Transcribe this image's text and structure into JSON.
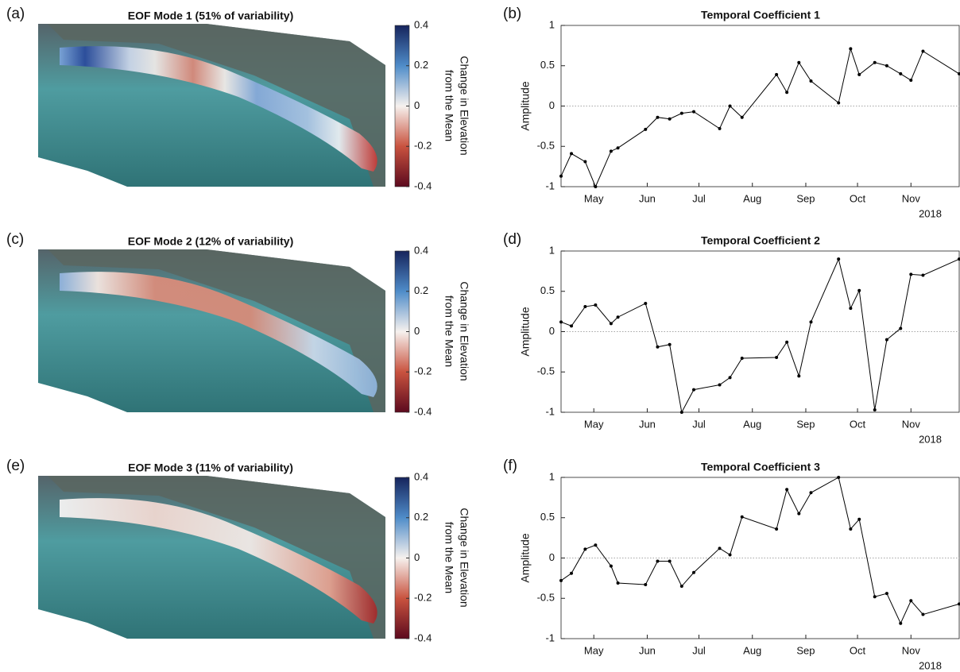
{
  "chart_data": [
    {
      "type": "map",
      "panel": "(a)",
      "title": "EOF Mode 1 (51% of variability)",
      "colorbar_label": [
        "Change in Elevation",
        "from the Mean"
      ],
      "clim": [
        -0.4,
        0.4
      ],
      "cticks": [
        0.4,
        0.2,
        0,
        -0.2,
        -0.4
      ],
      "colormap": [
        "#5c0a1e",
        "#c9533f",
        "#f6f1ee",
        "#4f8cc9",
        "#16245c"
      ]
    },
    {
      "type": "line",
      "panel": "(b)",
      "title": "Temporal Coefficient 1",
      "ylabel": "Amplitude",
      "color": "#000000",
      "x": [
        102,
        108,
        116,
        122,
        131,
        135,
        151,
        158,
        165,
        172,
        179,
        194,
        200,
        207,
        227,
        233,
        240,
        247,
        263,
        270,
        275,
        284,
        291,
        299,
        305,
        312,
        333
      ],
      "values": [
        -0.87,
        -0.59,
        -0.69,
        -1,
        -0.56,
        -0.52,
        -0.29,
        -0.14,
        -0.16,
        -0.09,
        -0.07,
        -0.28,
        0,
        -0.14,
        0.39,
        0.17,
        0.54,
        0.31,
        0.04,
        0.71,
        0.39,
        0.54,
        0.5,
        0.4,
        0.32,
        0.68,
        0.4
      ],
      "xlim": [
        102,
        333
      ],
      "xticks": [
        {
          "value": 121,
          "label": "May"
        },
        {
          "value": 152,
          "label": "Jun"
        },
        {
          "value": 182,
          "label": "Jul"
        },
        {
          "value": 213,
          "label": "Aug"
        },
        {
          "value": 244,
          "label": "Sep"
        },
        {
          "value": 274,
          "label": "Oct"
        },
        {
          "value": 305,
          "label": "Nov"
        }
      ],
      "year_label": "2018",
      "ylim": [
        -1,
        1
      ],
      "yticks": [
        1,
        0.5,
        0,
        -0.5,
        -1
      ],
      "hline": 0
    },
    {
      "type": "map",
      "panel": "(c)",
      "title": "EOF Mode 2 (12% of variability)",
      "colorbar_label": [
        "Change in Elevation",
        "from the Mean"
      ],
      "clim": [
        -0.4,
        0.4
      ],
      "cticks": [
        0.4,
        0.2,
        0,
        -0.2,
        -0.4
      ],
      "colormap": [
        "#5c0a1e",
        "#c9533f",
        "#f6f1ee",
        "#4f8cc9",
        "#16245c"
      ]
    },
    {
      "type": "line",
      "panel": "(d)",
      "title": "Temporal Coefficient 2",
      "ylabel": "Amplitude",
      "color": "#000000",
      "x": [
        102,
        108,
        116,
        122,
        131,
        135,
        151,
        158,
        165,
        172,
        179,
        194,
        200,
        207,
        227,
        233,
        240,
        247,
        263,
        270,
        275,
        284,
        291,
        299,
        305,
        312,
        333
      ],
      "values": [
        0.12,
        0.07,
        0.31,
        0.33,
        0.1,
        0.18,
        0.35,
        -0.19,
        -0.16,
        -1,
        -0.72,
        -0.66,
        -0.57,
        -0.33,
        -0.32,
        -0.13,
        -0.55,
        0.12,
        0.9,
        0.29,
        0.51,
        -0.97,
        -0.1,
        0.04,
        0.71,
        0.7,
        0.9
      ],
      "xlim": [
        102,
        333
      ],
      "xticks": [
        {
          "value": 121,
          "label": "May"
        },
        {
          "value": 152,
          "label": "Jun"
        },
        {
          "value": 182,
          "label": "Jul"
        },
        {
          "value": 213,
          "label": "Aug"
        },
        {
          "value": 244,
          "label": "Sep"
        },
        {
          "value": 274,
          "label": "Oct"
        },
        {
          "value": 305,
          "label": "Nov"
        }
      ],
      "year_label": "2018",
      "ylim": [
        -1,
        1
      ],
      "yticks": [
        1,
        0.5,
        0,
        -0.5,
        -1
      ],
      "hline": 0
    },
    {
      "type": "map",
      "panel": "(e)",
      "title": "EOF Mode 3 (11% of variability)",
      "colorbar_label": [
        "Change in Elevation",
        "from the Mean"
      ],
      "clim": [
        -0.4,
        0.4
      ],
      "cticks": [
        0.4,
        0.2,
        0,
        -0.2,
        -0.4
      ],
      "colormap": [
        "#5c0a1e",
        "#c9533f",
        "#f6f1ee",
        "#4f8cc9",
        "#16245c"
      ]
    },
    {
      "type": "line",
      "panel": "(f)",
      "title": "Temporal Coefficient 3",
      "ylabel": "Amplitude",
      "color": "#000000",
      "x": [
        102,
        108,
        116,
        122,
        131,
        135,
        151,
        158,
        165,
        172,
        179,
        194,
        200,
        207,
        227,
        233,
        240,
        247,
        263,
        270,
        275,
        284,
        291,
        299,
        305,
        312,
        333
      ],
      "values": [
        -0.28,
        -0.19,
        0.11,
        0.16,
        -0.1,
        -0.31,
        -0.33,
        -0.04,
        -0.04,
        -0.35,
        -0.18,
        0.12,
        0.04,
        0.51,
        0.36,
        0.85,
        0.55,
        0.81,
        1,
        0.36,
        0.48,
        -0.48,
        -0.44,
        -0.81,
        -0.53,
        -0.7,
        -0.57
      ],
      "xlim": [
        102,
        333
      ],
      "xticks": [
        {
          "value": 121,
          "label": "May"
        },
        {
          "value": 152,
          "label": "Jun"
        },
        {
          "value": 182,
          "label": "Jul"
        },
        {
          "value": 213,
          "label": "Aug"
        },
        {
          "value": 244,
          "label": "Sep"
        },
        {
          "value": 274,
          "label": "Oct"
        },
        {
          "value": 305,
          "label": "Nov"
        }
      ],
      "year_label": "2018",
      "ylim": [
        -1,
        1
      ],
      "yticks": [
        1,
        0.5,
        0,
        -0.5,
        -1
      ],
      "hline": 0
    }
  ]
}
